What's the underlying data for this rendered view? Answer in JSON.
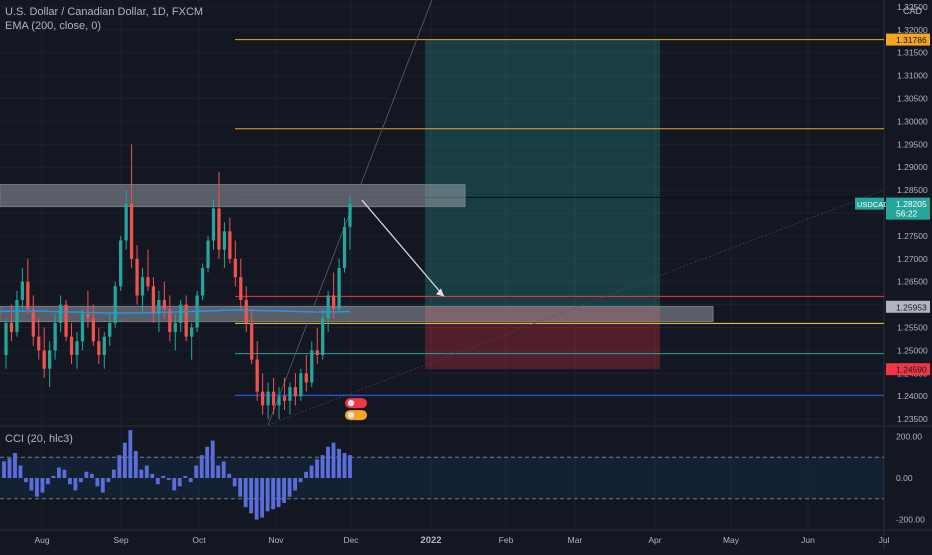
{
  "header": {
    "symbol_line": "U.S. Dollar / Canadian Dollar, 1D, FXCM",
    "ema_label": "EMA (200, close, 0)",
    "currency": "CAD"
  },
  "cci_label": "CCI (20, hlc3)",
  "colors": {
    "background": "#131722",
    "bull": "#26a69a",
    "bear": "#ef5350",
    "ema": "#2196f3",
    "cci": "#5b6dd9",
    "orange_line": "#f5a623",
    "red_line": "#f23645",
    "teal_line": "#26a69a",
    "yellow_line": "#f5d33a",
    "zone": "rgba(178,181,190,0.45)",
    "profit_box": "rgba(38,166,154,0.28)",
    "loss_box": "rgba(242,54,69,0.28)"
  },
  "chart_data": {
    "type": "candlestick",
    "instrument": "USDCAD",
    "timeframe": "1D",
    "x_ticks": [
      "Aug",
      "Sep",
      "Oct",
      "Nov",
      "Dec",
      "2022",
      "Feb",
      "Mar",
      "Apr",
      "May",
      "Jun",
      "Jul"
    ],
    "price_axis": {
      "ticks": [
        "1.32500",
        "1.32000",
        "1.31500",
        "1.31000",
        "1.30500",
        "1.30000",
        "1.29500",
        "1.29000",
        "1.28500",
        "1.28000",
        "1.27500",
        "1.27000",
        "1.26500",
        "1.26000",
        "1.25500",
        "1.25000",
        "1.24500",
        "1.24000",
        "1.23500"
      ],
      "range": [
        1.2335,
        1.3265
      ]
    },
    "current_price": {
      "symbol": "USDCAD",
      "value": "1.28205",
      "countdown": "56:22"
    },
    "price_labels": [
      {
        "value": "1.31786",
        "style": "orange"
      },
      {
        "value": "1.25953",
        "style": "gray"
      },
      {
        "value": "1.24590",
        "style": "red"
      }
    ],
    "horizontal_levels": [
      {
        "price": 1.31786,
        "style": "orange"
      },
      {
        "price": 1.2984,
        "style": "orange"
      },
      {
        "price": 1.2834,
        "style": "dark"
      },
      {
        "price": 1.2618,
        "style": "red"
      },
      {
        "price": 1.2559,
        "style": "yellow"
      },
      {
        "price": 1.2493,
        "style": "teal"
      },
      {
        "price": 1.2402,
        "style": "blue"
      }
    ],
    "zones": [
      {
        "top": 1.2862,
        "bottom": 1.2814
      },
      {
        "top": 1.2596,
        "bottom": 1.2563
      }
    ],
    "position": {
      "type": "short",
      "entry": 1.25953,
      "target": 1.31786,
      "stop": 1.2459
    },
    "projection": {
      "from": [
        1.2828
      ],
      "to": [
        1.2618
      ]
    },
    "candles_ohlc": [
      [
        1.249,
        1.257,
        1.246,
        1.256
      ],
      [
        1.256,
        1.26,
        1.252,
        1.254
      ],
      [
        1.254,
        1.263,
        1.253,
        1.261
      ],
      [
        1.261,
        1.268,
        1.259,
        1.265
      ],
      [
        1.265,
        1.27,
        1.258,
        1.259
      ],
      [
        1.259,
        1.262,
        1.251,
        1.253
      ],
      [
        1.253,
        1.257,
        1.248,
        1.25
      ],
      [
        1.25,
        1.255,
        1.244,
        1.246
      ],
      [
        1.246,
        1.252,
        1.242,
        1.25
      ],
      [
        1.25,
        1.258,
        1.248,
        1.256
      ],
      [
        1.256,
        1.262,
        1.254,
        1.26
      ],
      [
        1.26,
        1.261,
        1.252,
        1.253
      ],
      [
        1.253,
        1.256,
        1.247,
        1.249
      ],
      [
        1.249,
        1.254,
        1.246,
        1.252
      ],
      [
        1.252,
        1.259,
        1.25,
        1.258
      ],
      [
        1.258,
        1.263,
        1.255,
        1.257
      ],
      [
        1.257,
        1.26,
        1.251,
        1.252
      ],
      [
        1.252,
        1.255,
        1.247,
        1.249
      ],
      [
        1.249,
        1.254,
        1.246,
        1.253
      ],
      [
        1.253,
        1.258,
        1.251,
        1.256
      ],
      [
        1.256,
        1.265,
        1.255,
        1.264
      ],
      [
        1.264,
        1.275,
        1.263,
        1.274
      ],
      [
        1.274,
        1.285,
        1.272,
        1.282
      ],
      [
        1.282,
        1.295,
        1.268,
        1.27
      ],
      [
        1.27,
        1.273,
        1.26,
        1.262
      ],
      [
        1.262,
        1.268,
        1.258,
        1.266
      ],
      [
        1.266,
        1.272,
        1.263,
        1.264
      ],
      [
        1.264,
        1.266,
        1.256,
        1.258
      ],
      [
        1.258,
        1.263,
        1.254,
        1.261
      ],
      [
        1.261,
        1.265,
        1.257,
        1.259
      ],
      [
        1.259,
        1.262,
        1.252,
        1.254
      ],
      [
        1.254,
        1.258,
        1.25,
        1.256
      ],
      [
        1.256,
        1.261,
        1.254,
        1.26
      ],
      [
        1.26,
        1.262,
        1.252,
        1.253
      ],
      [
        1.253,
        1.256,
        1.248,
        1.255
      ],
      [
        1.255,
        1.263,
        1.254,
        1.262
      ],
      [
        1.262,
        1.269,
        1.261,
        1.268
      ],
      [
        1.268,
        1.275,
        1.267,
        1.274
      ],
      [
        1.274,
        1.283,
        1.272,
        1.281
      ],
      [
        1.281,
        1.289,
        1.27,
        1.272
      ],
      [
        1.272,
        1.278,
        1.268,
        1.276
      ],
      [
        1.276,
        1.279,
        1.269,
        1.27
      ],
      [
        1.27,
        1.274,
        1.264,
        1.266
      ],
      [
        1.266,
        1.27,
        1.259,
        1.261
      ],
      [
        1.261,
        1.264,
        1.254,
        1.256
      ],
      [
        1.256,
        1.259,
        1.247,
        1.248
      ],
      [
        1.248,
        1.252,
        1.239,
        1.241
      ],
      [
        1.241,
        1.245,
        1.236,
        1.238
      ],
      [
        1.238,
        1.243,
        1.235,
        1.241
      ],
      [
        1.241,
        1.244,
        1.236,
        1.238
      ],
      [
        1.238,
        1.242,
        1.235,
        1.24
      ],
      [
        1.24,
        1.244,
        1.237,
        1.239
      ],
      [
        1.239,
        1.243,
        1.236,
        1.242
      ],
      [
        1.242,
        1.245,
        1.238,
        1.24
      ],
      [
        1.24,
        1.246,
        1.239,
        1.245
      ],
      [
        1.245,
        1.249,
        1.241,
        1.243
      ],
      [
        1.243,
        1.252,
        1.242,
        1.25
      ],
      [
        1.25,
        1.255,
        1.247,
        1.249
      ],
      [
        1.249,
        1.259,
        1.248,
        1.257
      ],
      [
        1.257,
        1.263,
        1.254,
        1.262
      ],
      [
        1.262,
        1.267,
        1.257,
        1.259
      ],
      [
        1.259,
        1.27,
        1.258,
        1.268
      ],
      [
        1.268,
        1.279,
        1.267,
        1.277
      ],
      [
        1.277,
        1.284,
        1.272,
        1.282
      ]
    ],
    "ema_200": [
      1.2585,
      1.2586,
      1.2586,
      1.2585,
      1.2584,
      1.2583,
      1.2582,
      1.2582,
      1.2582,
      1.2583,
      1.2584,
      1.2585,
      1.2586,
      1.2588,
      1.2588,
      1.2587,
      1.2586,
      1.2585,
      1.2584,
      1.2584,
      1.2585
    ],
    "cci": {
      "range": [
        -250,
        250
      ],
      "ticks": [
        "200.00",
        "0.00",
        "-200.00"
      ],
      "levels": [
        100,
        -100
      ],
      "values": [
        80,
        95,
        120,
        60,
        -20,
        -60,
        -90,
        -70,
        -30,
        10,
        50,
        40,
        -30,
        -60,
        -20,
        30,
        20,
        -40,
        -70,
        -20,
        40,
        110,
        170,
        230,
        130,
        40,
        60,
        20,
        -30,
        10,
        -10,
        -60,
        -40,
        10,
        -20,
        60,
        110,
        150,
        180,
        60,
        80,
        20,
        -40,
        -90,
        -140,
        -170,
        -200,
        -190,
        -160,
        -150,
        -140,
        -120,
        -90,
        -60,
        -20,
        30,
        60,
        90,
        110,
        150,
        170,
        140,
        120,
        110
      ]
    }
  },
  "event_icons": [
    "flag-icon",
    "flag-icon"
  ]
}
